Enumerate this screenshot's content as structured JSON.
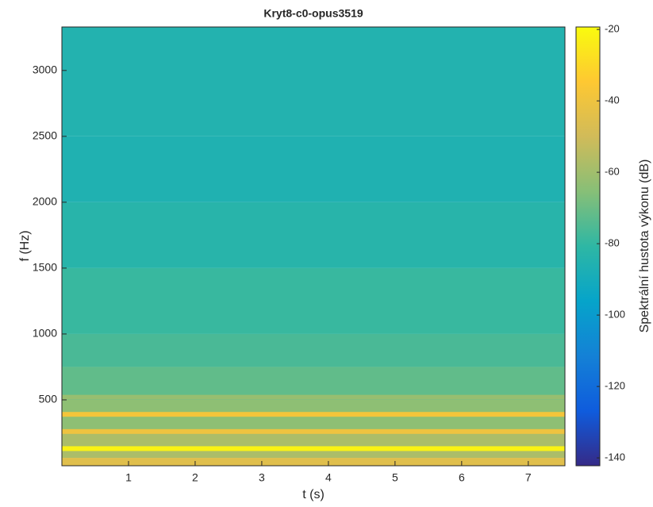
{
  "chart_data": {
    "type": "spectrogram",
    "title": "Kryt8-c0-opus3519",
    "xlabel": "t (s)",
    "ylabel": "f (Hz)",
    "colorbar_label": "Spektrální hustota výkonu (dB)",
    "xlim": [
      0,
      7.55
    ],
    "ylim": [
      0,
      3330
    ],
    "xticks": [
      1,
      2,
      3,
      4,
      5,
      6,
      7
    ],
    "yticks": [
      500,
      1000,
      1500,
      2000,
      2500,
      3000
    ],
    "clim": [
      -142.2,
      -19.3
    ],
    "cticks": [
      -140,
      -120,
      -100,
      -80,
      -60,
      -40,
      -20
    ],
    "colormap": [
      "#352a87",
      "#0f5cdd",
      "#1481d6",
      "#06a4ca",
      "#2eb7a4",
      "#87bf77",
      "#d1bb59",
      "#fec832",
      "#f9fb0e"
    ],
    "background": {
      "frequencies": [
        0,
        60,
        250,
        500,
        750,
        1000,
        1500,
        2000,
        2500,
        3330
      ],
      "levels": [
        -45,
        -58,
        -64,
        -72,
        -76,
        -79,
        -83,
        -86,
        -85
      ]
    },
    "harmonics": {
      "frequencies": [
        130,
        260,
        390,
        520
      ],
      "levels": [
        -22,
        -40,
        -38,
        -62
      ]
    }
  }
}
